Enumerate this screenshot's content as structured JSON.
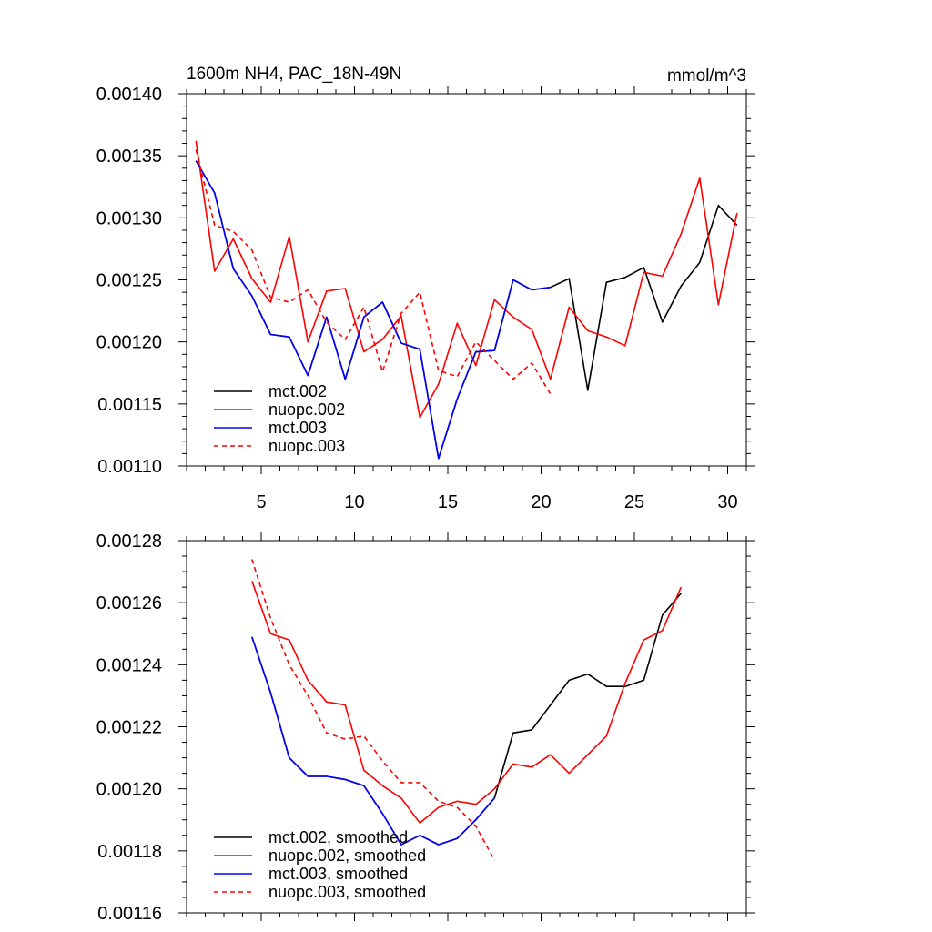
{
  "chart_data": [
    {
      "type": "line",
      "title": "1600m NH4, PAC_18N-49N",
      "units": "mmol/m^3",
      "xlim": [
        1,
        31
      ],
      "ylim": [
        0.0011,
        0.0014
      ],
      "xticks": [
        5,
        10,
        15,
        20,
        25,
        30
      ],
      "xtick_labels": [
        "5",
        "10",
        "15",
        "20",
        "25",
        "30"
      ],
      "yticks": [
        0.0011,
        0.00115,
        0.0012,
        0.00125,
        0.0013,
        0.00135,
        0.0014
      ],
      "ytick_labels": [
        "0.00110",
        "0.00115",
        "0.00120",
        "0.00125",
        "0.00130",
        "0.00135",
        "0.00140"
      ],
      "legend_position": "bottom-left",
      "series": [
        {
          "name": "mct.002",
          "color": "#000000",
          "dash": "solid",
          "x": [
            1.5,
            2.5,
            3.5,
            4.5,
            5.5,
            6.5,
            7.5,
            8.5,
            9.5,
            10.5,
            11.5,
            12.5,
            13.5,
            14.5,
            15.5,
            16.5,
            17.5,
            18.5,
            19.5,
            20.5,
            21.5,
            22.5,
            23.5,
            24.5,
            25.5,
            26.5,
            27.5,
            28.5,
            29.5,
            30.5
          ],
          "y": [
            0.001346,
            0.00132,
            0.001259,
            0.001237,
            0.001206,
            0.001204,
            0.001173,
            0.00122,
            0.00117,
            0.00122,
            0.001232,
            0.001199,
            0.001194,
            0.001106,
            0.001154,
            0.001192,
            0.001193,
            0.00125,
            0.001242,
            0.001244,
            0.001251,
            0.001161,
            0.001248,
            0.001252,
            0.00126,
            0.001216,
            0.001245,
            0.001264,
            0.00131,
            0.001294
          ]
        },
        {
          "name": "nuopc.002",
          "color": "#ff0000",
          "dash": "solid",
          "x": [
            1.5,
            2.5,
            3.5,
            4.5,
            5.5,
            6.5,
            7.5,
            8.5,
            9.5,
            10.5,
            11.5,
            12.5,
            13.5,
            14.5,
            15.5,
            16.5,
            17.5,
            18.5,
            19.5,
            20.5,
            21.5,
            22.5,
            23.5,
            24.5,
            25.5,
            26.5,
            27.5,
            28.5,
            29.5,
            30.5
          ],
          "y": [
            0.001362,
            0.001257,
            0.001283,
            0.001251,
            0.001232,
            0.001285,
            0.0012,
            0.001241,
            0.001243,
            0.001192,
            0.001202,
            0.001221,
            0.001139,
            0.001166,
            0.001215,
            0.001181,
            0.001234,
            0.00122,
            0.00121,
            0.00117,
            0.001228,
            0.001209,
            0.001204,
            0.001197,
            0.001256,
            0.001253,
            0.001287,
            0.001332,
            0.00123,
            0.001304
          ]
        },
        {
          "name": "mct.003",
          "color": "#0000ff",
          "dash": "solid",
          "x": [
            1.5,
            2.5,
            3.5,
            4.5,
            5.5,
            6.5,
            7.5,
            8.5,
            9.5,
            10.5,
            11.5,
            12.5,
            13.5,
            14.5,
            15.5,
            16.5,
            17.5,
            18.5,
            19.5,
            20.5
          ],
          "y": [
            0.001346,
            0.00132,
            0.001259,
            0.001237,
            0.001206,
            0.001204,
            0.001173,
            0.00122,
            0.00117,
            0.00122,
            0.001232,
            0.001199,
            0.001194,
            0.001106,
            0.001154,
            0.001192,
            0.001193,
            0.00125,
            0.001242,
            0.001244
          ]
        },
        {
          "name": "nuopc.003",
          "color": "#ff0000",
          "dash": "dashed",
          "x": [
            1.5,
            2.5,
            3.5,
            4.5,
            5.5,
            6.5,
            7.5,
            8.5,
            9.5,
            10.5,
            11.5,
            12.5,
            13.5,
            14.5,
            15.5,
            16.5,
            17.5,
            18.5,
            19.5,
            20.5
          ],
          "y": [
            0.001355,
            0.001294,
            0.001289,
            0.001274,
            0.001236,
            0.001232,
            0.001242,
            0.001216,
            0.001202,
            0.001228,
            0.001176,
            0.001223,
            0.00124,
            0.001177,
            0.001172,
            0.0012,
            0.001185,
            0.00117,
            0.001183,
            0.001158
          ]
        }
      ]
    },
    {
      "type": "line",
      "xlim": [
        1,
        31
      ],
      "ylim": [
        0.00116,
        0.00128
      ],
      "xticks": [
        5,
        10,
        15,
        20,
        25,
        30
      ],
      "yticks": [
        0.00116,
        0.00118,
        0.0012,
        0.00122,
        0.00124,
        0.00126,
        0.00128
      ],
      "ytick_labels": [
        "0.00116",
        "0.00118",
        "0.00120",
        "0.00122",
        "0.00124",
        "0.00126",
        "0.00128"
      ],
      "legend_position": "bottom-left",
      "series": [
        {
          "name": "mct.002, smoothed",
          "color": "#000000",
          "dash": "solid",
          "x": [
            4.5,
            5.5,
            6.5,
            7.5,
            8.5,
            9.5,
            10.5,
            11.5,
            12.5,
            13.5,
            14.5,
            15.5,
            16.5,
            17.5,
            18.5,
            19.5,
            20.5,
            21.5,
            22.5,
            23.5,
            24.5,
            25.5,
            26.5,
            27.5
          ],
          "y": [
            0.001249,
            0.001231,
            0.00121,
            0.001204,
            0.001204,
            0.001203,
            0.001201,
            0.001192,
            0.001182,
            0.001185,
            0.001182,
            0.001184,
            0.00119,
            0.001197,
            0.001218,
            0.001219,
            0.001227,
            0.001235,
            0.001237,
            0.001233,
            0.001233,
            0.001235,
            0.001256,
            0.001263
          ]
        },
        {
          "name": "nuopc.002, smoothed",
          "color": "#ff0000",
          "dash": "solid",
          "x": [
            4.5,
            5.5,
            6.5,
            7.5,
            8.5,
            9.5,
            10.5,
            11.5,
            12.5,
            13.5,
            14.5,
            15.5,
            16.5,
            17.5,
            18.5,
            19.5,
            20.5,
            21.5,
            22.5,
            23.5,
            24.5,
            25.5,
            26.5,
            27.5
          ],
          "y": [
            0.001267,
            0.00125,
            0.001248,
            0.001235,
            0.001228,
            0.001227,
            0.001206,
            0.001201,
            0.001197,
            0.001189,
            0.001194,
            0.001196,
            0.001195,
            0.0012,
            0.001208,
            0.001207,
            0.001211,
            0.001205,
            0.001211,
            0.001217,
            0.001234,
            0.001248,
            0.001251,
            0.001265
          ]
        },
        {
          "name": "mct.003, smoothed",
          "color": "#0000ff",
          "dash": "solid",
          "x": [
            4.5,
            5.5,
            6.5,
            7.5,
            8.5,
            9.5,
            10.5,
            11.5,
            12.5,
            13.5,
            14.5,
            15.5,
            16.5,
            17.5
          ],
          "y": [
            0.001249,
            0.001231,
            0.00121,
            0.001204,
            0.001204,
            0.001203,
            0.001201,
            0.001192,
            0.001182,
            0.001185,
            0.001182,
            0.001184,
            0.00119,
            0.001197
          ]
        },
        {
          "name": "nuopc.003, smoothed",
          "color": "#ff0000",
          "dash": "dashed",
          "x": [
            4.5,
            5.5,
            6.5,
            7.5,
            8.5,
            9.5,
            10.5,
            11.5,
            12.5,
            13.5,
            14.5,
            15.5,
            16.5,
            17.5
          ],
          "y": [
            0.001274,
            0.001255,
            0.00124,
            0.00123,
            0.001218,
            0.001216,
            0.001217,
            0.001209,
            0.001202,
            0.001202,
            0.001196,
            0.001194,
            0.001188,
            0.001177
          ]
        }
      ]
    }
  ]
}
